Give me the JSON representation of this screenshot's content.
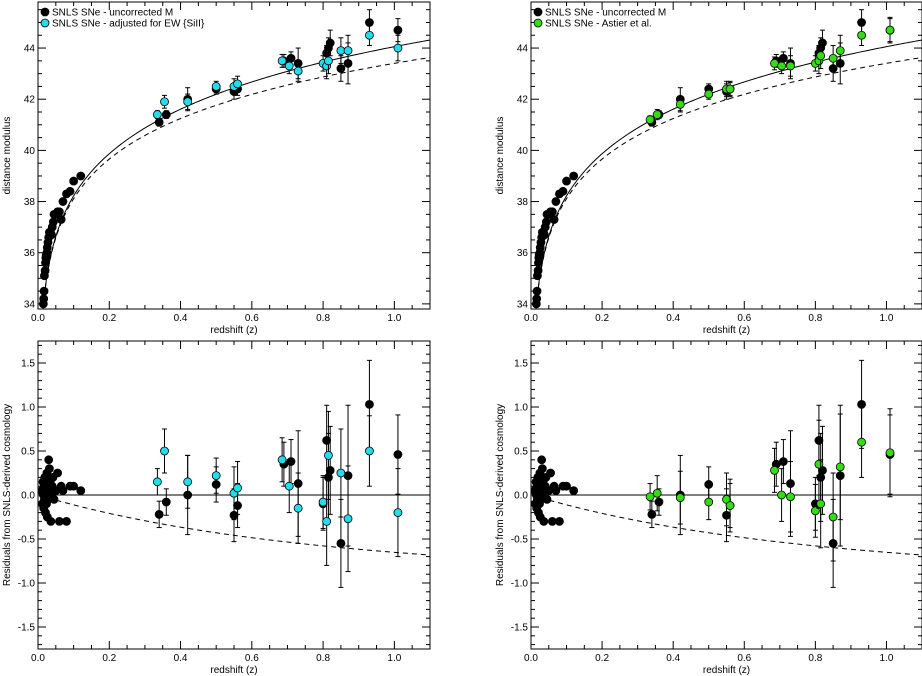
{
  "chart_data": [
    {
      "type": "scatter",
      "xlabel": "redshift (z)",
      "ylabel": "distance modulus",
      "xlim": [
        0,
        1.1
      ],
      "ylim": [
        33.8,
        45.8
      ],
      "xticks": [
        0.0,
        0.2,
        0.4,
        0.6,
        0.8,
        1.0
      ],
      "yticks": [
        34,
        36,
        38,
        40,
        42,
        44
      ],
      "grid": false,
      "legend": "top-left",
      "series": [
        {
          "name": "SNLS SNe - uncorrected M",
          "color": "#000000",
          "x": [
            0.015,
            0.016,
            0.017,
            0.018,
            0.02,
            0.021,
            0.022,
            0.023,
            0.025,
            0.026,
            0.028,
            0.03,
            0.032,
            0.035,
            0.038,
            0.04,
            0.043,
            0.045,
            0.05,
            0.055,
            0.06,
            0.065,
            0.07,
            0.08,
            0.09,
            0.1,
            0.12,
            0.34,
            0.36,
            0.42,
            0.5,
            0.55,
            0.56,
            0.69,
            0.71,
            0.73,
            0.81,
            0.815,
            0.82,
            0.85,
            0.87,
            0.93,
            1.01
          ],
          "y": [
            34.0,
            34.2,
            34.5,
            35.1,
            35.3,
            35.6,
            35.8,
            35.9,
            36.0,
            36.2,
            36.4,
            36.6,
            36.8,
            36.8,
            36.7,
            37.0,
            37.2,
            37.5,
            37.5,
            37.6,
            37.6,
            37.3,
            38.0,
            38.3,
            38.4,
            38.8,
            39.0,
            41.1,
            41.4,
            42.0,
            42.4,
            42.3,
            42.4,
            43.5,
            43.6,
            43.4,
            43.8,
            44.0,
            44.2,
            43.2,
            43.4,
            45.0,
            44.7
          ],
          "yerr": [
            0,
            0,
            0,
            0,
            0,
            0,
            0,
            0,
            0,
            0,
            0,
            0,
            0,
            0,
            0,
            0,
            0,
            0,
            0,
            0,
            0,
            0,
            0,
            0,
            0,
            0,
            0,
            0.15,
            0.15,
            0.45,
            0.2,
            0.3,
            0.25,
            0.25,
            0.25,
            0.6,
            0.3,
            0.4,
            0.5,
            0.5,
            0.8,
            0.5,
            0.45
          ]
        },
        {
          "name": "SNLS SNe - adjusted for EW {SiII}",
          "color": "#22ddee",
          "x": [
            0.335,
            0.355,
            0.42,
            0.5,
            0.55,
            0.56,
            0.685,
            0.705,
            0.73,
            0.8,
            0.81,
            0.815,
            0.85,
            0.87,
            0.93,
            1.01
          ],
          "y": [
            41.4,
            41.9,
            41.9,
            42.5,
            42.5,
            42.6,
            43.5,
            43.3,
            43.1,
            43.4,
            43.3,
            43.5,
            43.9,
            43.9,
            44.5,
            44.0
          ],
          "yerr": [
            0.15,
            0.25,
            0.3,
            0.2,
            0.3,
            0.3,
            0.25,
            0.3,
            0.4,
            0.3,
            0.5,
            0.5,
            0.5,
            0.6,
            0.4,
            0.5
          ]
        }
      ]
    },
    {
      "type": "scatter",
      "xlabel": "redshift (z)",
      "ylabel": "distance modulus",
      "xlim": [
        0,
        1.1
      ],
      "ylim": [
        33.8,
        45.8
      ],
      "xticks": [
        0.0,
        0.2,
        0.4,
        0.6,
        0.8,
        1.0
      ],
      "yticks": [
        34,
        36,
        38,
        40,
        42,
        44
      ],
      "grid": false,
      "legend": "top-left",
      "series": [
        {
          "name": "SNLS SNe - uncorrected M",
          "color": "#000000",
          "x": [
            0.015,
            0.016,
            0.017,
            0.018,
            0.02,
            0.021,
            0.022,
            0.023,
            0.025,
            0.026,
            0.028,
            0.03,
            0.032,
            0.035,
            0.038,
            0.04,
            0.043,
            0.045,
            0.05,
            0.055,
            0.06,
            0.065,
            0.07,
            0.08,
            0.09,
            0.1,
            0.12,
            0.34,
            0.36,
            0.42,
            0.5,
            0.55,
            0.56,
            0.69,
            0.71,
            0.73,
            0.81,
            0.815,
            0.82,
            0.85,
            0.87,
            0.93,
            1.01
          ],
          "y": [
            34.0,
            34.2,
            34.5,
            35.1,
            35.3,
            35.6,
            35.8,
            35.9,
            36.0,
            36.2,
            36.4,
            36.6,
            36.8,
            36.8,
            36.7,
            37.0,
            37.2,
            37.5,
            37.5,
            37.6,
            37.6,
            37.3,
            38.0,
            38.3,
            38.4,
            38.8,
            39.0,
            41.1,
            41.4,
            42.0,
            42.4,
            42.3,
            42.4,
            43.5,
            43.6,
            43.4,
            43.8,
            44.0,
            44.2,
            43.2,
            43.4,
            45.0,
            44.7
          ],
          "yerr": [
            0,
            0,
            0,
            0,
            0,
            0,
            0,
            0,
            0,
            0,
            0,
            0,
            0,
            0,
            0,
            0,
            0,
            0,
            0,
            0,
            0,
            0,
            0,
            0,
            0,
            0,
            0,
            0.15,
            0.15,
            0.45,
            0.2,
            0.3,
            0.25,
            0.25,
            0.25,
            0.6,
            0.3,
            0.4,
            0.5,
            0.5,
            0.8,
            0.5,
            0.45
          ]
        },
        {
          "name": "SNLS SNe - Astier et al.",
          "color": "#33dd11",
          "x": [
            0.335,
            0.355,
            0.42,
            0.5,
            0.55,
            0.56,
            0.685,
            0.705,
            0.73,
            0.8,
            0.81,
            0.815,
            0.85,
            0.87,
            0.93,
            1.01
          ],
          "y": [
            41.2,
            41.4,
            41.8,
            42.2,
            42.4,
            42.4,
            43.4,
            43.3,
            43.3,
            43.4,
            43.5,
            43.7,
            43.6,
            43.9,
            44.5,
            44.7
          ],
          "yerr": [
            0.15,
            0.2,
            0.3,
            0.2,
            0.3,
            0.3,
            0.25,
            0.3,
            0.4,
            0.3,
            0.5,
            0.5,
            0.5,
            0.6,
            0.4,
            0.5
          ]
        }
      ]
    },
    {
      "type": "scatter",
      "xlabel": "redshift (z)",
      "ylabel": "Residuals from SNLS-derived cosmology",
      "xlim": [
        0,
        1.1
      ],
      "ylim": [
        -1.75,
        1.75
      ],
      "xticks": [
        0.0,
        0.2,
        0.4,
        0.6,
        0.8,
        1.0
      ],
      "yticks": [
        -1.5,
        -1.0,
        -0.5,
        0.0,
        0.5,
        1.0,
        1.5
      ],
      "grid": false,
      "series": [
        {
          "name": "SNLS SNe - uncorrected M",
          "color": "#000000",
          "x": [
            0.01,
            0.012,
            0.014,
            0.015,
            0.016,
            0.017,
            0.018,
            0.019,
            0.02,
            0.021,
            0.022,
            0.023,
            0.024,
            0.025,
            0.026,
            0.027,
            0.028,
            0.03,
            0.032,
            0.034,
            0.036,
            0.038,
            0.04,
            0.042,
            0.045,
            0.05,
            0.055,
            0.06,
            0.065,
            0.07,
            0.08,
            0.09,
            0.1,
            0.12,
            0.34,
            0.36,
            0.42,
            0.5,
            0.55,
            0.56,
            0.69,
            0.71,
            0.73,
            0.8,
            0.81,
            0.815,
            0.82,
            0.85,
            0.87,
            0.93,
            1.01
          ],
          "y": [
            0.05,
            -0.1,
            0.15,
            0.0,
            -0.15,
            0.1,
            -0.05,
            0.2,
            0.05,
            -0.2,
            0.0,
            0.1,
            -0.1,
            0.25,
            -0.25,
            0.05,
            -0.05,
            0.4,
            0.3,
            0.15,
            -0.3,
            0.0,
            0.1,
            0.2,
            -0.05,
            0.05,
            0.25,
            -0.3,
            0.1,
            0.05,
            -0.3,
            0.1,
            0.1,
            0.05,
            -0.22,
            -0.08,
            0.0,
            0.12,
            -0.23,
            -0.12,
            0.35,
            0.38,
            0.13,
            -0.1,
            0.62,
            0.2,
            0.28,
            -0.55,
            0.22,
            1.03,
            0.46
          ],
          "yerr": [
            0,
            0,
            0,
            0,
            0,
            0,
            0,
            0,
            0,
            0,
            0,
            0,
            0,
            0,
            0,
            0,
            0,
            0,
            0,
            0,
            0,
            0,
            0,
            0,
            0,
            0,
            0,
            0,
            0,
            0,
            0,
            0,
            0,
            0,
            0.15,
            0.15,
            0.45,
            0.2,
            0.3,
            0.25,
            0.25,
            0.25,
            0.6,
            0.3,
            0.4,
            0.5,
            0.5,
            0.5,
            0.8,
            0.5,
            0.45
          ]
        },
        {
          "name": "SNLS SNe - adjusted for EW {SiII}",
          "color": "#22ddee",
          "x": [
            0.335,
            0.355,
            0.42,
            0.5,
            0.55,
            0.56,
            0.685,
            0.705,
            0.73,
            0.8,
            0.81,
            0.815,
            0.85,
            0.87,
            0.93,
            1.01
          ],
          "y": [
            0.15,
            0.5,
            0.15,
            0.22,
            0.02,
            0.08,
            0.4,
            0.1,
            -0.15,
            -0.08,
            -0.3,
            0.45,
            0.25,
            -0.27,
            0.5,
            -0.2
          ],
          "yerr": [
            0.15,
            0.25,
            0.3,
            0.2,
            0.3,
            0.3,
            0.25,
            0.3,
            0.4,
            0.3,
            0.5,
            0.5,
            0.5,
            0.6,
            0.4,
            0.5
          ]
        }
      ]
    },
    {
      "type": "scatter",
      "xlabel": "redshift (z)",
      "ylabel": "Residuals from SNLS-derived cosmology",
      "xlim": [
        0,
        1.1
      ],
      "ylim": [
        -1.75,
        1.75
      ],
      "xticks": [
        0.0,
        0.2,
        0.4,
        0.6,
        0.8,
        1.0
      ],
      "yticks": [
        -1.5,
        -1.0,
        -0.5,
        0.0,
        0.5,
        1.0,
        1.5
      ],
      "grid": false,
      "series": [
        {
          "name": "SNLS SNe - uncorrected M",
          "color": "#000000",
          "x": [
            0.01,
            0.012,
            0.014,
            0.015,
            0.016,
            0.017,
            0.018,
            0.019,
            0.02,
            0.021,
            0.022,
            0.023,
            0.024,
            0.025,
            0.026,
            0.027,
            0.028,
            0.03,
            0.032,
            0.034,
            0.036,
            0.038,
            0.04,
            0.042,
            0.045,
            0.05,
            0.055,
            0.06,
            0.065,
            0.07,
            0.08,
            0.09,
            0.1,
            0.12,
            0.34,
            0.36,
            0.42,
            0.5,
            0.55,
            0.56,
            0.69,
            0.71,
            0.73,
            0.8,
            0.81,
            0.815,
            0.82,
            0.85,
            0.87,
            0.93,
            1.01
          ],
          "y": [
            0.05,
            -0.1,
            0.15,
            0.0,
            -0.15,
            0.1,
            -0.05,
            0.2,
            0.05,
            -0.2,
            0.0,
            0.1,
            -0.1,
            0.25,
            -0.25,
            0.05,
            -0.05,
            0.4,
            0.3,
            0.15,
            -0.3,
            0.0,
            0.1,
            0.2,
            -0.05,
            0.05,
            0.25,
            -0.3,
            0.1,
            0.05,
            -0.3,
            0.1,
            0.1,
            0.05,
            -0.22,
            -0.08,
            0.0,
            0.12,
            -0.23,
            -0.12,
            0.35,
            0.38,
            0.13,
            -0.1,
            0.62,
            0.2,
            0.28,
            -0.55,
            0.22,
            1.03,
            0.46
          ],
          "yerr": [
            0,
            0,
            0,
            0,
            0,
            0,
            0,
            0,
            0,
            0,
            0,
            0,
            0,
            0,
            0,
            0,
            0,
            0,
            0,
            0,
            0,
            0,
            0,
            0,
            0,
            0,
            0,
            0,
            0,
            0,
            0,
            0,
            0,
            0,
            0.15,
            0.15,
            0.45,
            0.2,
            0.3,
            0.25,
            0.25,
            0.25,
            0.6,
            0.3,
            0.4,
            0.5,
            0.5,
            0.5,
            0.8,
            0.5,
            0.45
          ]
        },
        {
          "name": "SNLS SNe - Astier et al.",
          "color": "#33dd11",
          "x": [
            0.335,
            0.355,
            0.42,
            0.5,
            0.55,
            0.56,
            0.685,
            0.705,
            0.73,
            0.8,
            0.81,
            0.815,
            0.85,
            0.87,
            0.93,
            1.01
          ],
          "y": [
            -0.02,
            0.02,
            -0.03,
            -0.08,
            -0.05,
            -0.12,
            0.28,
            0.0,
            -0.02,
            -0.18,
            0.35,
            -0.1,
            -0.25,
            0.32,
            0.6,
            0.48
          ],
          "yerr": [
            0.15,
            0.2,
            0.3,
            0.2,
            0.3,
            0.3,
            0.25,
            0.3,
            0.4,
            0.3,
            0.5,
            0.5,
            0.5,
            0.6,
            0.4,
            0.5
          ]
        }
      ]
    }
  ]
}
